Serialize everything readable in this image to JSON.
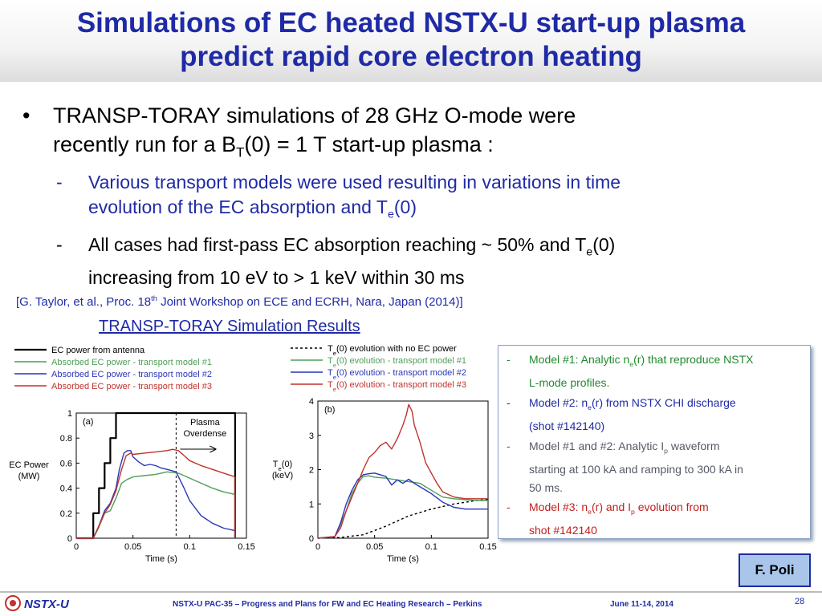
{
  "title": {
    "line1": "Simulations of EC heated NSTX-U start-up plasma",
    "line2": "predict rapid core electron heating"
  },
  "bullet": {
    "text_a": "TRANSP-TORAY simulations of 28 GHz O-mode were",
    "text_b": "recently run for a B",
    "sub": "T",
    "text_c": "(0) = 1 T start-up plasma :"
  },
  "subbullets": [
    {
      "a": "Various transport models were used resulting in variations in time",
      "b": "evolution of the EC absorption and T",
      "sub": "e",
      "c": "(0)"
    },
    {
      "a": "All cases had first-pass EC absorption reaching ~ 50% and T",
      "sub": "e",
      "c": "(0)",
      "d": "increasing from 10 eV to > 1 keV within 30 ms"
    }
  ],
  "citation": {
    "a": "[G. Taylor, et al., Proc. 18",
    "sup": "th",
    "b": " Joint Workshop on ECE and ECRH, Nara, Japan (2014)]"
  },
  "sim_header": "TRANSP-TORAY Simulation Results",
  "colors": {
    "black": "#000000",
    "green": "#4f9e5a",
    "blue": "#2c36b8",
    "red": "#c0322d",
    "title": "#1f2aa6"
  },
  "chart_data": [
    {
      "type": "line",
      "panel_label": "(a)",
      "xlabel": "Time (s)",
      "ylabel": [
        "EC Power",
        "(MW)"
      ],
      "xlim": [
        0,
        0.15
      ],
      "ylim": [
        0,
        1
      ],
      "xticks": [
        "0",
        "0.05",
        "0.1",
        "0.15"
      ],
      "yticks": [
        "0",
        "0.2",
        "0.4",
        "0.6",
        "0.8",
        "1"
      ],
      "annotation": [
        "Plasma",
        "Overdense"
      ],
      "annotation_x": 0.088,
      "legend": [
        "EC power from antenna",
        "Absorbed EC power - transport model #1",
        "Absorbed EC power - transport model #2",
        "Absorbed EC power - transport model #3"
      ],
      "series": [
        {
          "name": "EC power from antenna",
          "color": "black",
          "dash": false,
          "points": [
            [
              0,
              0
            ],
            [
              0.015,
              0
            ],
            [
              0.015,
              0.2
            ],
            [
              0.02,
              0.2
            ],
            [
              0.02,
              0.4
            ],
            [
              0.025,
              0.4
            ],
            [
              0.025,
              0.6
            ],
            [
              0.03,
              0.6
            ],
            [
              0.03,
              0.8
            ],
            [
              0.035,
              0.8
            ],
            [
              0.035,
              1.0
            ],
            [
              0.14,
              1.0
            ],
            [
              0.14,
              0
            ]
          ]
        },
        {
          "name": "Absorbed EC power - transport model #1",
          "color": "green",
          "dash": false,
          "points": [
            [
              0,
              0
            ],
            [
              0.015,
              0
            ],
            [
              0.02,
              0.09
            ],
            [
              0.025,
              0.2
            ],
            [
              0.03,
              0.22
            ],
            [
              0.035,
              0.32
            ],
            [
              0.04,
              0.44
            ],
            [
              0.045,
              0.47
            ],
            [
              0.05,
              0.49
            ],
            [
              0.06,
              0.5
            ],
            [
              0.07,
              0.51
            ],
            [
              0.08,
              0.53
            ],
            [
              0.09,
              0.52
            ],
            [
              0.1,
              0.48
            ],
            [
              0.11,
              0.44
            ],
            [
              0.12,
              0.4
            ],
            [
              0.13,
              0.37
            ],
            [
              0.14,
              0.35
            ],
            [
              0.14,
              0
            ]
          ]
        },
        {
          "name": "Absorbed EC power - transport model #2",
          "color": "blue",
          "dash": false,
          "points": [
            [
              0,
              0
            ],
            [
              0.015,
              0
            ],
            [
              0.02,
              0.1
            ],
            [
              0.025,
              0.22
            ],
            [
              0.03,
              0.28
            ],
            [
              0.035,
              0.4
            ],
            [
              0.038,
              0.55
            ],
            [
              0.042,
              0.68
            ],
            [
              0.045,
              0.7
            ],
            [
              0.048,
              0.7
            ],
            [
              0.05,
              0.65
            ],
            [
              0.055,
              0.61
            ],
            [
              0.06,
              0.58
            ],
            [
              0.065,
              0.59
            ],
            [
              0.07,
              0.58
            ],
            [
              0.075,
              0.56
            ],
            [
              0.08,
              0.55
            ],
            [
              0.088,
              0.53
            ],
            [
              0.095,
              0.4
            ],
            [
              0.1,
              0.3
            ],
            [
              0.11,
              0.18
            ],
            [
              0.12,
              0.12
            ],
            [
              0.13,
              0.08
            ],
            [
              0.14,
              0.06
            ],
            [
              0.14,
              0
            ]
          ]
        },
        {
          "name": "Absorbed EC power - transport model #3",
          "color": "red",
          "dash": false,
          "points": [
            [
              0,
              0
            ],
            [
              0.015,
              0
            ],
            [
              0.02,
              0.1
            ],
            [
              0.025,
              0.2
            ],
            [
              0.03,
              0.27
            ],
            [
              0.035,
              0.38
            ],
            [
              0.04,
              0.55
            ],
            [
              0.044,
              0.66
            ],
            [
              0.048,
              0.68
            ],
            [
              0.05,
              0.67
            ],
            [
              0.06,
              0.68
            ],
            [
              0.07,
              0.69
            ],
            [
              0.08,
              0.7
            ],
            [
              0.085,
              0.71
            ],
            [
              0.09,
              0.7
            ],
            [
              0.095,
              0.66
            ],
            [
              0.1,
              0.62
            ],
            [
              0.11,
              0.58
            ],
            [
              0.12,
              0.55
            ],
            [
              0.13,
              0.52
            ],
            [
              0.14,
              0.49
            ],
            [
              0.14,
              0
            ]
          ]
        }
      ]
    },
    {
      "type": "line",
      "panel_label": "(b)",
      "xlabel": "Time (s)",
      "ylabel": [
        "T",
        "e",
        "(0)",
        "(keV)"
      ],
      "xlim": [
        0,
        0.15
      ],
      "ylim": [
        0,
        4
      ],
      "xticks": [
        "0",
        "0.05",
        "0.1",
        "0.15"
      ],
      "yticks": [
        "0",
        "1",
        "2",
        "3",
        "4"
      ],
      "legend": [
        {
          "a": "T",
          "sub": "e",
          "b": "(0) evolution with no EC power"
        },
        {
          "a": "T",
          "sub": "e",
          "b": "(0) evolution - transport model #1"
        },
        {
          "a": "T",
          "sub": "e",
          "b": "(0) evolution - transport model #2"
        },
        {
          "a": "T",
          "sub": "e",
          "b": "(0) evolution - transport model #3"
        }
      ],
      "series": [
        {
          "color": "black",
          "dash": true,
          "points": [
            [
              0,
              0
            ],
            [
              0.02,
              0.02
            ],
            [
              0.04,
              0.1
            ],
            [
              0.06,
              0.35
            ],
            [
              0.08,
              0.65
            ],
            [
              0.1,
              0.85
            ],
            [
              0.12,
              1.0
            ],
            [
              0.14,
              1.1
            ],
            [
              0.15,
              1.13
            ]
          ]
        },
        {
          "color": "green",
          "dash": false,
          "points": [
            [
              0,
              0
            ],
            [
              0.015,
              0.05
            ],
            [
              0.02,
              0.4
            ],
            [
              0.025,
              0.8
            ],
            [
              0.03,
              1.3
            ],
            [
              0.035,
              1.6
            ],
            [
              0.04,
              1.8
            ],
            [
              0.045,
              1.82
            ],
            [
              0.05,
              1.78
            ],
            [
              0.06,
              1.75
            ],
            [
              0.07,
              1.7
            ],
            [
              0.08,
              1.65
            ],
            [
              0.09,
              1.6
            ],
            [
              0.1,
              1.4
            ],
            [
              0.11,
              1.2
            ],
            [
              0.12,
              1.15
            ],
            [
              0.13,
              1.12
            ],
            [
              0.14,
              1.1
            ],
            [
              0.15,
              1.1
            ]
          ]
        },
        {
          "color": "blue",
          "dash": false,
          "points": [
            [
              0,
              0
            ],
            [
              0.015,
              0.05
            ],
            [
              0.02,
              0.45
            ],
            [
              0.025,
              1.0
            ],
            [
              0.03,
              1.4
            ],
            [
              0.035,
              1.7
            ],
            [
              0.04,
              1.85
            ],
            [
              0.045,
              1.88
            ],
            [
              0.05,
              1.9
            ],
            [
              0.055,
              1.85
            ],
            [
              0.06,
              1.8
            ],
            [
              0.065,
              1.55
            ],
            [
              0.07,
              1.7
            ],
            [
              0.075,
              1.6
            ],
            [
              0.08,
              1.72
            ],
            [
              0.085,
              1.6
            ],
            [
              0.09,
              1.5
            ],
            [
              0.1,
              1.3
            ],
            [
              0.11,
              1.05
            ],
            [
              0.12,
              0.9
            ],
            [
              0.13,
              0.85
            ],
            [
              0.14,
              0.85
            ],
            [
              0.15,
              0.85
            ]
          ]
        },
        {
          "color": "red",
          "dash": false,
          "points": [
            [
              0,
              0
            ],
            [
              0.015,
              0.05
            ],
            [
              0.02,
              0.3
            ],
            [
              0.025,
              0.8
            ],
            [
              0.03,
              1.2
            ],
            [
              0.035,
              1.6
            ],
            [
              0.04,
              2.0
            ],
            [
              0.045,
              2.35
            ],
            [
              0.05,
              2.5
            ],
            [
              0.055,
              2.7
            ],
            [
              0.06,
              2.8
            ],
            [
              0.065,
              2.6
            ],
            [
              0.07,
              2.9
            ],
            [
              0.075,
              3.3
            ],
            [
              0.078,
              3.6
            ],
            [
              0.08,
              3.9
            ],
            [
              0.083,
              3.7
            ],
            [
              0.085,
              3.3
            ],
            [
              0.088,
              3.0
            ],
            [
              0.09,
              2.8
            ],
            [
              0.095,
              2.2
            ],
            [
              0.1,
              1.9
            ],
            [
              0.105,
              1.6
            ],
            [
              0.11,
              1.35
            ],
            [
              0.12,
              1.2
            ],
            [
              0.13,
              1.15
            ],
            [
              0.14,
              1.15
            ],
            [
              0.15,
              1.15
            ]
          ]
        }
      ]
    }
  ],
  "model_box": [
    {
      "color": "green",
      "a": "Model #1: Analytic n",
      "sub": "e",
      "b": "(r) that reproduce NSTX",
      "c": "L-mode profiles."
    },
    {
      "color": "blue",
      "a": "Model #2: n",
      "sub": "e",
      "b": "(r) from NSTX CHI discharge",
      "c": "(shot #142140)"
    },
    {
      "color": "gray",
      "a": "Model #1 and #2: Analytic I",
      "sub": "p",
      "b": " waveform",
      "c": "starting at 100 kA and ramping to 300 kA in",
      "d": "50 ms."
    },
    {
      "color": "red",
      "a": "Model #3: n",
      "sub": "e",
      "b": "(r) and I",
      "sub2": "p",
      "b2": " evolution from",
      "c": "shot #142140"
    }
  ],
  "credit": "F. Poli",
  "footer": {
    "logo": "NSTX-U",
    "text": "NSTX-U PAC-35 – Progress and Plans for FW and EC Heating Research – Perkins",
    "date": "June 11-14, 2014",
    "page": "28"
  }
}
